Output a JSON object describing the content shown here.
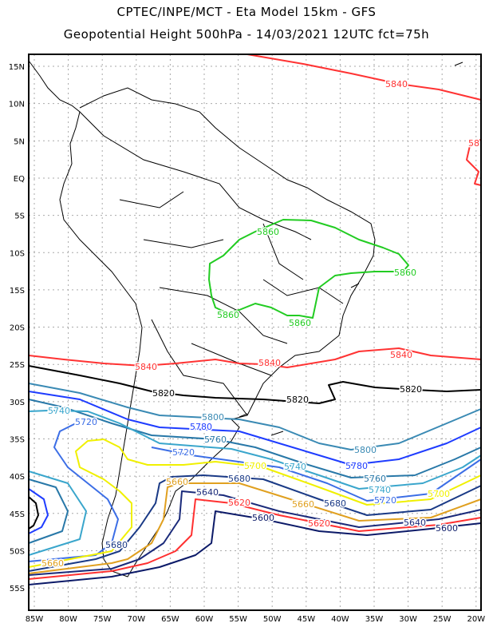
{
  "header": {
    "title": "CPTEC/INPE/MCT -  Eta Model 15km - GFS",
    "subtitle": "Geopotential Height 500hPa - 14/03/2021 12UTC fct=75h"
  },
  "axes": {
    "lat_labels": [
      "15N",
      "10N",
      "5N",
      "EQ",
      "5S",
      "10S",
      "15S",
      "20S",
      "25S",
      "30S",
      "35S",
      "40S",
      "45S",
      "50S",
      "55S"
    ],
    "lon_labels": [
      "85W",
      "80W",
      "75W",
      "70W",
      "65W",
      "60W",
      "55W",
      "50W",
      "45W",
      "40W",
      "35W",
      "30W",
      "25W",
      "20W"
    ]
  },
  "levels": {
    "5860": "#22cc22",
    "5840": "#ff3333",
    "5820": "#000000",
    "5800": "#3a8ab4",
    "5780": "#1e3cff",
    "5760": "#2878a8",
    "5740": "#3aa6cc",
    "5720": "#3c6ee6",
    "5700": "#f0f000",
    "5680": "#1a3a86",
    "5660": "#e0a020",
    "5640": "#1a2a7a",
    "5620": "#ff3030",
    "5600": "#0c1a68"
  },
  "contour_labels": [
    "5840",
    "58",
    "5860",
    "5860",
    "5860",
    "5860",
    "5840",
    "5840",
    "5840",
    "5820",
    "5820",
    "5820",
    "5740",
    "5720",
    "5800",
    "5780",
    "5760",
    "5740",
    "5720",
    "5700",
    "5680",
    "5660",
    "5640",
    "5620",
    "5600",
    "5800",
    "5780",
    "5760",
    "5740",
    "5720",
    "5700",
    "5680",
    "5660",
    "5640",
    "5620",
    "5600",
    "5680",
    "5660"
  ]
}
